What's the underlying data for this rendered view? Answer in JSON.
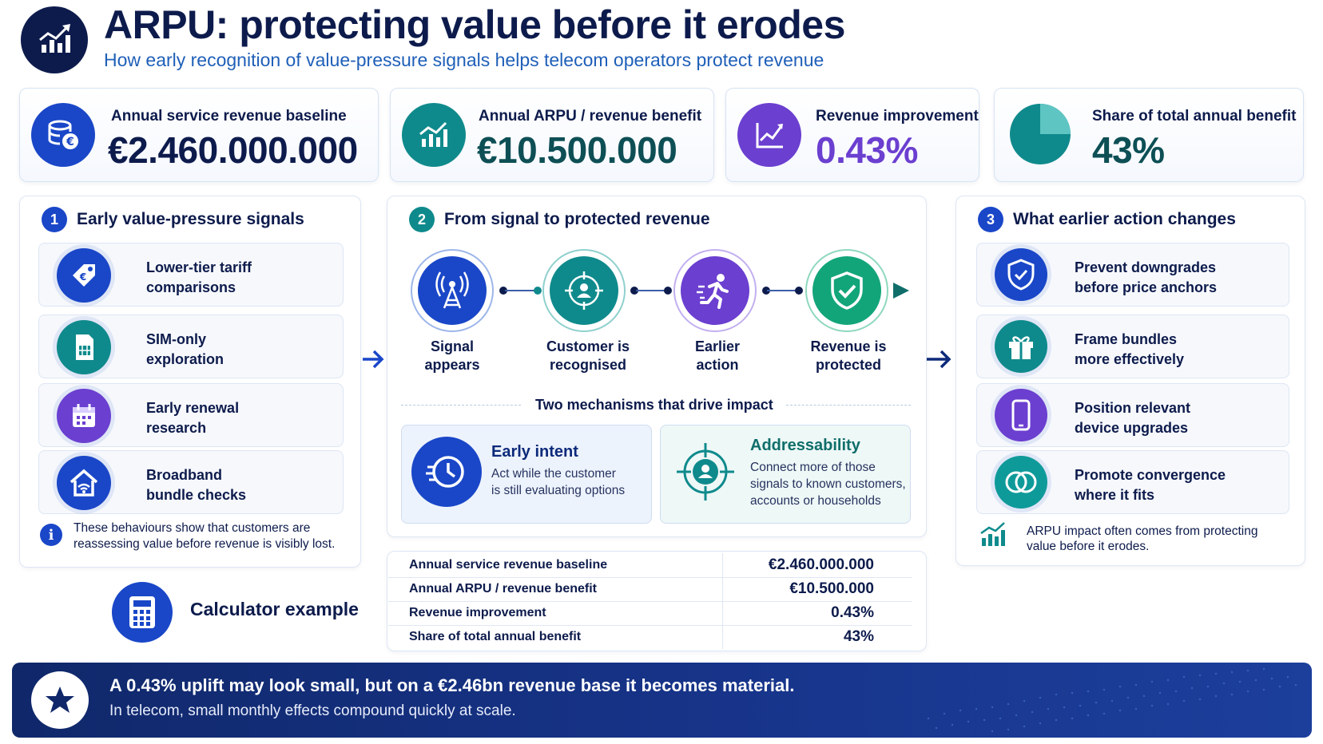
{
  "header": {
    "title": "ARPU: protecting value before it erodes",
    "subtitle": "How early recognition of value-pressure signals helps telecom operators protect revenue",
    "logo_icon": "rising-chart-icon"
  },
  "kpis": [
    {
      "label": "Annual service revenue baseline",
      "value": "€2.460.000.000",
      "icon": "euro-coins-icon",
      "color": "#1a47c8"
    },
    {
      "label": "Annual ARPU / revenue benefit",
      "value": "€10.500.000",
      "icon": "growth-chart-icon",
      "color": "#0f8a8c"
    },
    {
      "label": "Revenue improvement",
      "value": "0.43%",
      "icon": "line-chart-icon",
      "color": "#6b3fd0"
    },
    {
      "label": "Share of total annual benefit",
      "value": "43%",
      "icon": "pie-chart-icon",
      "color": "#0f8a8c"
    }
  ],
  "signals": {
    "number": "1",
    "title": "Early value-pressure signals",
    "items": [
      {
        "label_line1": "Lower-tier tariff",
        "label_line2": "comparisons",
        "icon": "price-tag-icon"
      },
      {
        "label_line1": "SIM-only",
        "label_line2": "exploration",
        "icon": "sim-card-icon"
      },
      {
        "label_line1": "Early renewal",
        "label_line2": "research",
        "icon": "calendar-icon"
      },
      {
        "label_line1": "Broadband",
        "label_line2": "bundle checks",
        "icon": "home-wifi-icon"
      }
    ],
    "note_line1": "These behaviours show that customers are",
    "note_line2": "reassessing value before revenue is visibly lost."
  },
  "flow": {
    "number": "2",
    "title": "From signal to protected revenue",
    "steps": [
      {
        "label_line1": "Signal",
        "label_line2": "appears",
        "icon": "signal-tower-icon"
      },
      {
        "label_line1": "Customer is",
        "label_line2": "recognised",
        "icon": "target-user-icon"
      },
      {
        "label_line1": "Earlier",
        "label_line2": "action",
        "icon": "running-person-icon"
      },
      {
        "label_line1": "Revenue is",
        "label_line2": "protected",
        "icon": "shield-check-icon"
      }
    ],
    "mechanisms_title": "Two mechanisms that drive impact",
    "mechanisms": [
      {
        "title": "Early intent",
        "desc_line1": "Act while the customer",
        "desc_line2": "is still evaluating options",
        "desc_line3": "",
        "icon": "clock-icon"
      },
      {
        "title": "Addressability",
        "desc_line1": "Connect more of those",
        "desc_line2": "signals to known customers,",
        "desc_line3": "accounts or households",
        "icon": "crosshair-user-icon"
      }
    ]
  },
  "calculator": {
    "label": "Calculator example",
    "icon": "calculator-icon",
    "rows": [
      {
        "key": "Annual service revenue baseline",
        "value": "€2.460.000.000"
      },
      {
        "key": "Annual ARPU / revenue benefit",
        "value": "€10.500.000"
      },
      {
        "key": "Revenue improvement",
        "value": "0.43%"
      },
      {
        "key": "Share of total annual benefit",
        "value": "43%"
      }
    ]
  },
  "actions": {
    "number": "3",
    "title": "What earlier action changes",
    "items": [
      {
        "label_line1": "Prevent downgrades",
        "label_line2": "before price anchors",
        "icon": "shield-icon"
      },
      {
        "label_line1": "Frame bundles",
        "label_line2": "more effectively",
        "icon": "gift-icon"
      },
      {
        "label_line1": "Position relevant",
        "label_line2": "device upgrades",
        "icon": "smartphone-icon"
      },
      {
        "label_line1": "Promote convergence",
        "label_line2": "where it fits",
        "icon": "rings-icon"
      }
    ],
    "note_line1": "ARPU impact often comes from protecting",
    "note_line2": "value before it erodes."
  },
  "banner": {
    "line1": "A 0.43% uplift may look small, but on a €2.46bn revenue base it becomes material.",
    "line2": "In telecom, small monthly effects compound quickly at scale.",
    "icon": "star-icon"
  }
}
